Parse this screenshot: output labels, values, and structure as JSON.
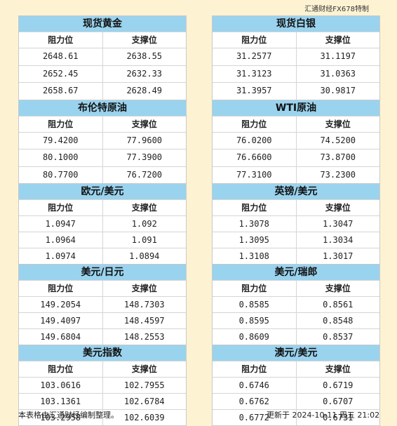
{
  "brand": "汇通财经FX678特制",
  "headers": {
    "resist": "阻力位",
    "support": "支撑位"
  },
  "left": [
    {
      "title": "现货黄金",
      "rows": [
        [
          "2648.61",
          "2638.55"
        ],
        [
          "2652.45",
          "2632.33"
        ],
        [
          "2658.67",
          "2628.49"
        ]
      ]
    },
    {
      "title": "布伦特原油",
      "rows": [
        [
          "79.4200",
          "77.9600"
        ],
        [
          "80.1000",
          "77.3900"
        ],
        [
          "80.7700",
          "76.7200"
        ]
      ]
    },
    {
      "title": "欧元/美元",
      "rows": [
        [
          "1.0947",
          "1.092"
        ],
        [
          "1.0964",
          "1.091"
        ],
        [
          "1.0974",
          "1.0894"
        ]
      ]
    },
    {
      "title": "美元/日元",
      "rows": [
        [
          "149.2054",
          "148.7303"
        ],
        [
          "149.4097",
          "148.4597"
        ],
        [
          "149.6804",
          "148.2553"
        ]
      ]
    },
    {
      "title": "美元指数",
      "rows": [
        [
          "103.0616",
          "102.7955"
        ],
        [
          "103.1361",
          "102.6784"
        ],
        [
          "103.2958",
          "102.6039"
        ]
      ]
    }
  ],
  "right": [
    {
      "title": "现货白银",
      "rows": [
        [
          "31.2577",
          "31.1197"
        ],
        [
          "31.3123",
          "31.0363"
        ],
        [
          "31.3957",
          "30.9817"
        ]
      ]
    },
    {
      "title": "WTI原油",
      "rows": [
        [
          "76.0200",
          "74.5200"
        ],
        [
          "76.6600",
          "73.8700"
        ],
        [
          "77.3100",
          "73.2300"
        ]
      ]
    },
    {
      "title": "英镑/美元",
      "rows": [
        [
          "1.3078",
          "1.3047"
        ],
        [
          "1.3095",
          "1.3034"
        ],
        [
          "1.3108",
          "1.3017"
        ]
      ]
    },
    {
      "title": "美元/瑞郎",
      "rows": [
        [
          "0.8585",
          "0.8561"
        ],
        [
          "0.8595",
          "0.8548"
        ],
        [
          "0.8609",
          "0.8537"
        ]
      ]
    },
    {
      "title": "澳元/美元",
      "rows": [
        [
          "0.6746",
          "0.6719"
        ],
        [
          "0.6762",
          "0.6707"
        ],
        [
          "0.6772",
          "0.6731"
        ]
      ]
    }
  ],
  "footer": {
    "note": "本表格由汇通财经编制整理。",
    "updated": "更新于 2024-10-11 周五 21:02"
  }
}
